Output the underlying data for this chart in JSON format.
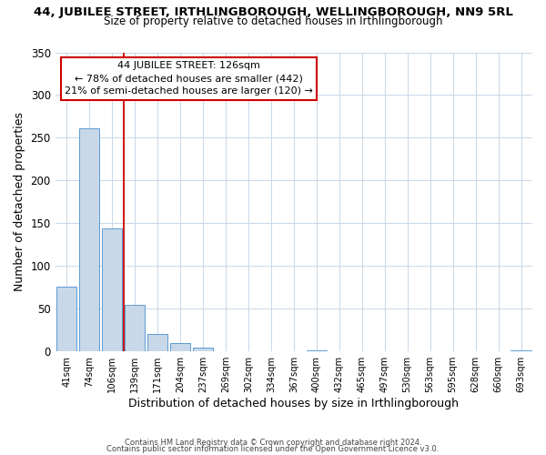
{
  "title": "44, JUBILEE STREET, IRTHLINGBOROUGH, WELLINGBOROUGH, NN9 5RL",
  "subtitle": "Size of property relative to detached houses in Irthlingborough",
  "xlabel": "Distribution of detached houses by size in Irthlingborough",
  "ylabel": "Number of detached properties",
  "bar_labels": [
    "41sqm",
    "74sqm",
    "106sqm",
    "139sqm",
    "171sqm",
    "204sqm",
    "237sqm",
    "269sqm",
    "302sqm",
    "334sqm",
    "367sqm",
    "400sqm",
    "432sqm",
    "465sqm",
    "497sqm",
    "530sqm",
    "563sqm",
    "595sqm",
    "628sqm",
    "660sqm",
    "693sqm"
  ],
  "bar_values": [
    76,
    261,
    144,
    55,
    20,
    10,
    4,
    0,
    0,
    0,
    0,
    1,
    0,
    0,
    0,
    0,
    0,
    0,
    0,
    0,
    1
  ],
  "bar_color": "#c8d8e8",
  "bar_edge_color": "#5b9bd5",
  "vline_color": "#cc0000",
  "ylim": [
    0,
    350
  ],
  "yticks": [
    0,
    50,
    100,
    150,
    200,
    250,
    300,
    350
  ],
  "annotation_text": "44 JUBILEE STREET: 126sqm\n← 78% of detached houses are smaller (442)\n21% of semi-detached houses are larger (120) →",
  "annotation_box_color": "#ffffff",
  "annotation_box_edge": "#cc0000",
  "footer_line1": "Contains HM Land Registry data © Crown copyright and database right 2024.",
  "footer_line2": "Contains public sector information licensed under the Open Government Licence v3.0.",
  "background_color": "#ffffff",
  "grid_color": "#c8d8e8"
}
